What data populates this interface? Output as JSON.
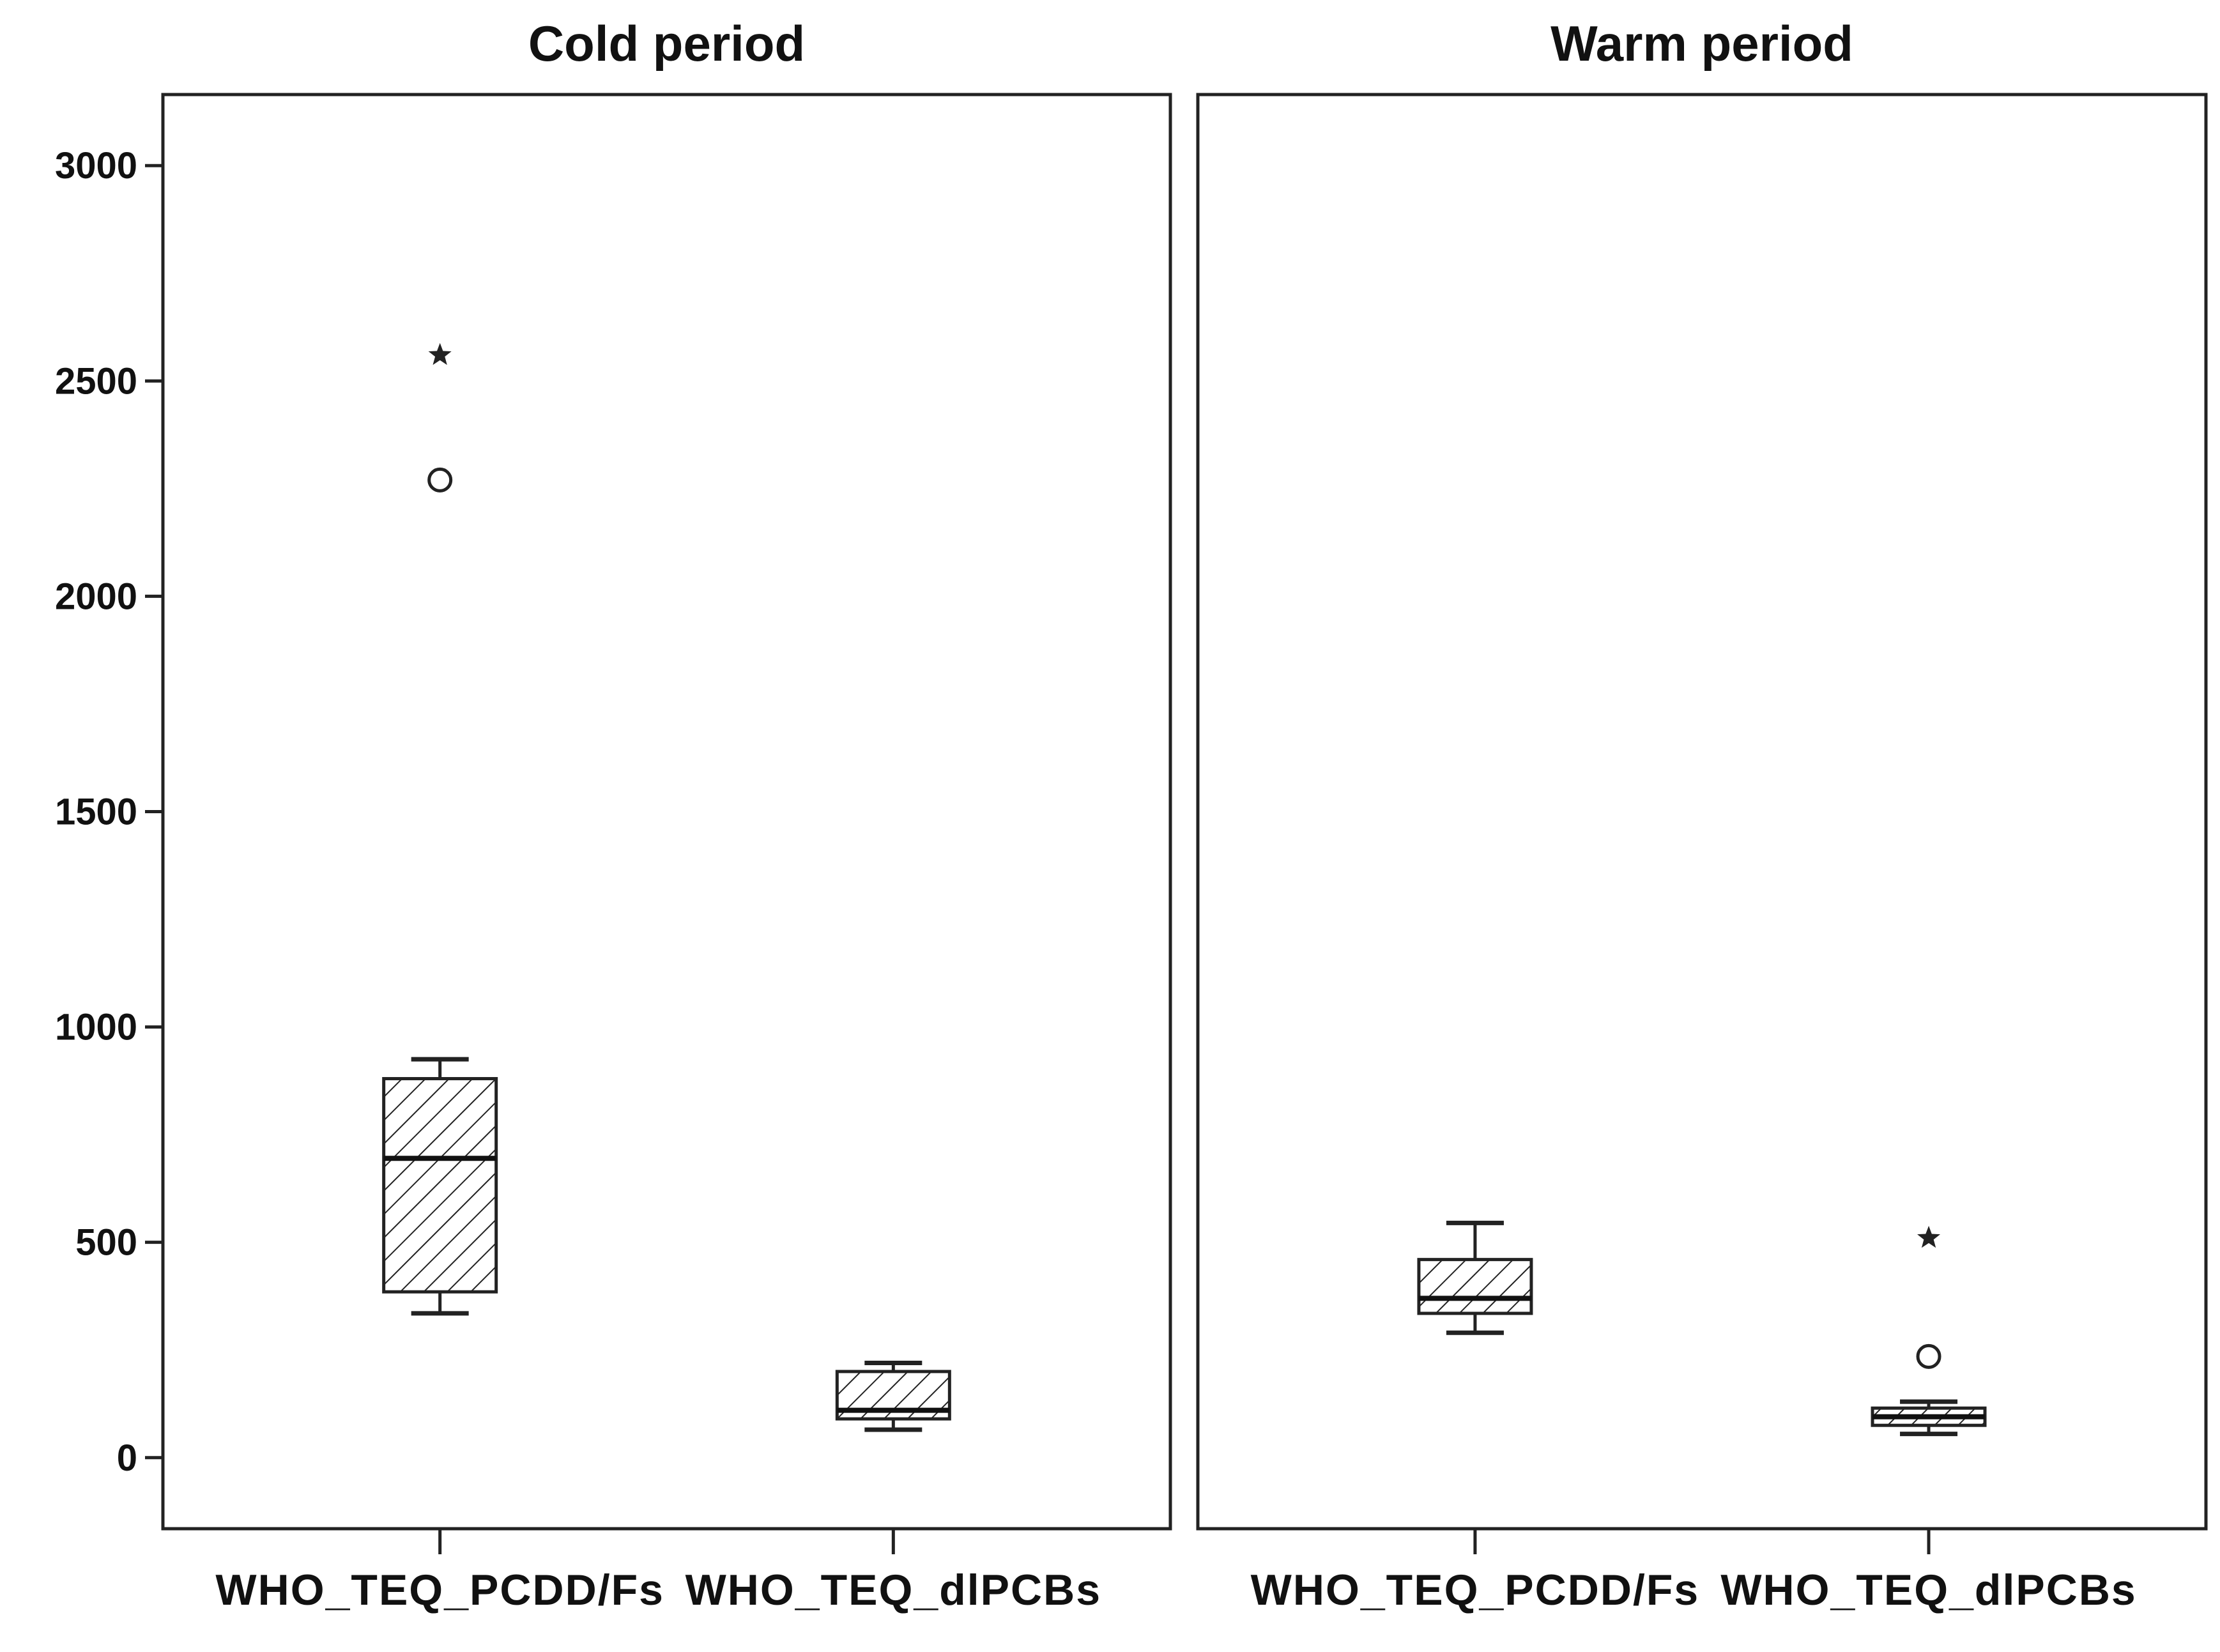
{
  "chart_data": {
    "type": "box",
    "ylim": [
      -165,
      3165
    ],
    "yticks": [
      0,
      500,
      1000,
      1500,
      2000,
      2500,
      3000
    ],
    "grid": false,
    "categories": [
      "WHO_TEQ_PCDD/Fs",
      "WHO_TEQ_dlPCBs"
    ],
    "panels": [
      {
        "title": "Cold period",
        "boxes": [
          {
            "category": "WHO_TEQ_PCDD/Fs",
            "whisker_low": 335,
            "q1": 385,
            "median": 695,
            "q3": 880,
            "whisker_high": 925,
            "outliers": [
              {
                "value": 2270,
                "marker": "circle"
              },
              {
                "value": 2560,
                "marker": "star"
              }
            ]
          },
          {
            "category": "WHO_TEQ_dlPCBs",
            "whisker_low": 65,
            "q1": 90,
            "median": 110,
            "q3": 200,
            "whisker_high": 220,
            "outliers": []
          }
        ]
      },
      {
        "title": "Warm period",
        "boxes": [
          {
            "category": "WHO_TEQ_PCDD/Fs",
            "whisker_low": 290,
            "q1": 335,
            "median": 370,
            "q3": 460,
            "whisker_high": 545,
            "outliers": []
          },
          {
            "category": "WHO_TEQ_dlPCBs",
            "whisker_low": 55,
            "q1": 75,
            "median": 95,
            "q3": 115,
            "whisker_high": 130,
            "outliers": [
              {
                "value": 235,
                "marker": "circle"
              },
              {
                "value": 510,
                "marker": "star"
              }
            ]
          }
        ]
      }
    ]
  }
}
